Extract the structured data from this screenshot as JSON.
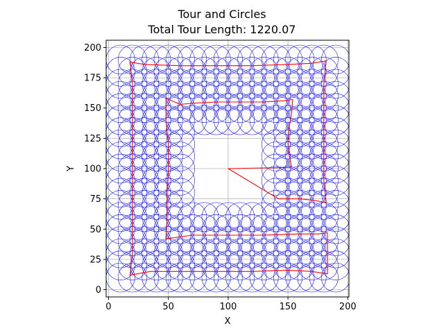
{
  "chart_data": {
    "type": "line",
    "title_line1": "Tour and Circles",
    "title_line2": "Total Tour Length: 1220.07",
    "xlabel": "X",
    "ylabel": "Y",
    "xlim": [
      -2,
      201
    ],
    "ylim": [
      -6,
      206
    ],
    "xticks": [
      0,
      50,
      100,
      150,
      200
    ],
    "yticks": [
      0,
      25,
      50,
      75,
      100,
      125,
      150,
      175,
      200
    ],
    "grid": true,
    "circle_radius": 12,
    "circle_color": "#0000ff",
    "tour_color": "#ff0000",
    "circle_grid": {
      "x_start": 10,
      "x_step": 10,
      "x_count": 19,
      "y_start": 10,
      "y_step": 10,
      "y_count": 19,
      "hole": {
        "x_min": 70,
        "x_max": 130,
        "y_min": 70,
        "y_max": 130
      }
    },
    "tour": [
      [
        100,
        100
      ],
      [
        153,
        101
      ],
      [
        151,
        112
      ],
      [
        150,
        122
      ],
      [
        151,
        134
      ],
      [
        153,
        146
      ],
      [
        154,
        157
      ],
      [
        146,
        156
      ],
      [
        130,
        155
      ],
      [
        110,
        155
      ],
      [
        100,
        155
      ],
      [
        90,
        155
      ],
      [
        70,
        154
      ],
      [
        60,
        153
      ],
      [
        48,
        158
      ],
      [
        48,
        140
      ],
      [
        50,
        120
      ],
      [
        50,
        100
      ],
      [
        49,
        80
      ],
      [
        49,
        60
      ],
      [
        48,
        42
      ],
      [
        70,
        45
      ],
      [
        100,
        45
      ],
      [
        130,
        45
      ],
      [
        160,
        46
      ],
      [
        176,
        46
      ],
      [
        183,
        47
      ],
      [
        183,
        30
      ],
      [
        183,
        13
      ],
      [
        170,
        15
      ],
      [
        150,
        16
      ],
      [
        120,
        15
      ],
      [
        90,
        15
      ],
      [
        60,
        15
      ],
      [
        35,
        15
      ],
      [
        18,
        12
      ],
      [
        20,
        30
      ],
      [
        20,
        50
      ],
      [
        20,
        70
      ],
      [
        20,
        90
      ],
      [
        20,
        110
      ],
      [
        20,
        130
      ],
      [
        20,
        150
      ],
      [
        20,
        170
      ],
      [
        18,
        188
      ],
      [
        30,
        186
      ],
      [
        60,
        185
      ],
      [
        90,
        185
      ],
      [
        120,
        185
      ],
      [
        150,
        186
      ],
      [
        170,
        187
      ],
      [
        182,
        189
      ],
      [
        180,
        170
      ],
      [
        180,
        150
      ],
      [
        180,
        130
      ],
      [
        180,
        110
      ],
      [
        180,
        90
      ],
      [
        182,
        72
      ],
      [
        170,
        74
      ],
      [
        160,
        75
      ],
      [
        142,
        75
      ],
      [
        100,
        100
      ]
    ]
  }
}
